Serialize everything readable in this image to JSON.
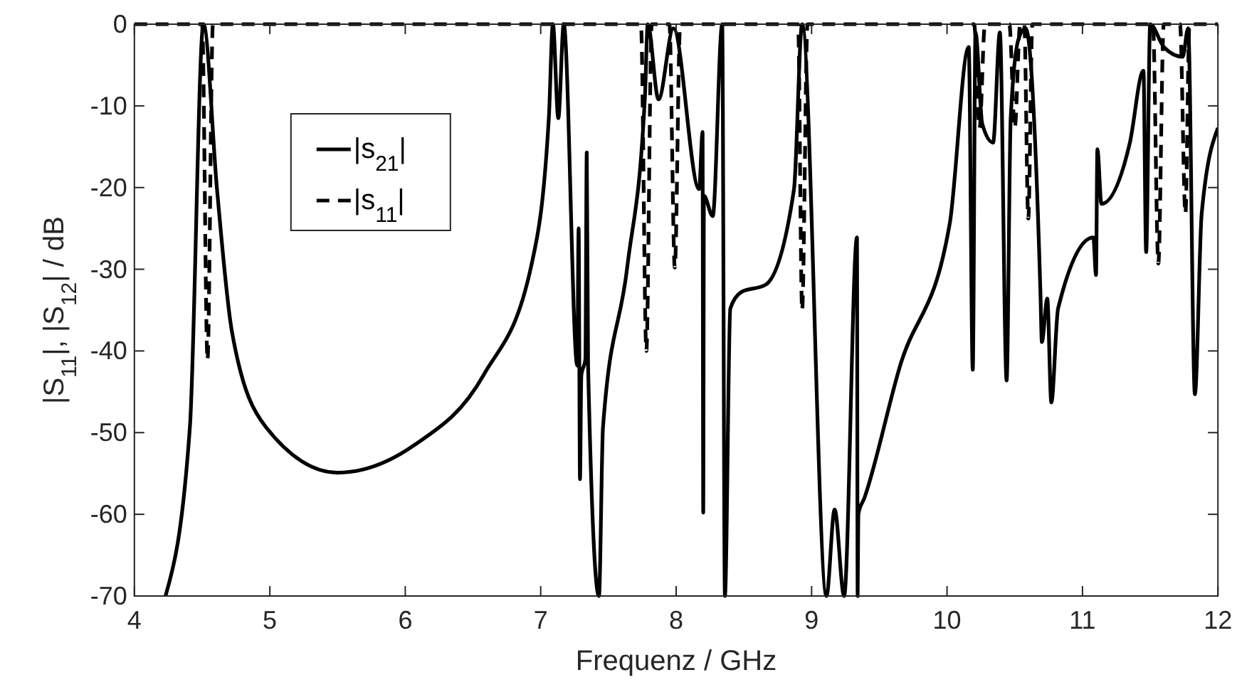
{
  "chart_data": {
    "type": "line",
    "xlabel": "Frequenz / GHz",
    "ylabel": "|S$_{11}$|, |S$_{12}$| / dB",
    "xlim": [
      4,
      12
    ],
    "xticks": [
      4,
      5,
      6,
      7,
      8,
      9,
      10,
      11,
      12
    ],
    "ylim": [
      -70,
      0
    ],
    "yticks": [
      -70,
      -60,
      -50,
      -40,
      -30,
      -20,
      -10,
      0
    ],
    "grid": false,
    "legend": "top left",
    "marker": "none",
    "series": [
      {
        "name": "|s$_{21}$|",
        "color": "#000000",
        "line_style": "solid",
        "x": [
          4.23,
          4.41,
          4.51,
          4.61,
          4.72,
          4.97,
          5.5,
          6.06,
          6.58,
          6.93,
          7.06,
          7.09,
          7.13,
          7.17,
          7.27,
          7.28,
          7.29,
          7.3,
          7.33,
          7.34,
          7.35,
          7.43,
          7.46,
          7.64,
          7.77,
          7.79,
          7.87,
          7.98,
          8.17,
          8.195,
          8.2,
          8.205,
          8.27,
          8.34,
          8.36,
          8.4,
          8.48,
          8.66,
          8.87,
          8.93,
          9.11,
          9.17,
          9.24,
          9.335,
          9.34,
          9.345,
          9.39,
          9.65,
          10.02,
          10.16,
          10.19,
          10.21,
          10.26,
          10.34,
          10.39,
          10.44,
          10.47,
          10.53,
          10.58,
          10.69,
          10.7,
          10.74,
          10.77,
          10.82,
          11.08,
          11.1,
          11.11,
          11.14,
          11.35,
          11.45,
          11.47,
          11.5,
          11.6,
          11.74,
          11.78,
          11.83,
          11.88,
          12
        ],
        "values": [
          -70,
          -49.3,
          0,
          -20.2,
          -37.6,
          -49.3,
          -54.9,
          -51.6,
          -42.9,
          -29.6,
          -11.5,
          0,
          -11.5,
          0,
          -41.8,
          -25,
          -55.7,
          -43,
          -41,
          -15.7,
          -42,
          -70,
          -49.3,
          -29.6,
          -8.7,
          0,
          -9.2,
          -0.5,
          -20.2,
          -13.2,
          -59.8,
          -21,
          -23.5,
          0,
          -70,
          -34.8,
          -32.8,
          -31.9,
          -20.2,
          0,
          -70,
          -59.4,
          -70,
          -26.1,
          -70,
          -60,
          -58,
          -42,
          -24.4,
          -2.8,
          -42.3,
          -1,
          -12.2,
          -14.5,
          -1,
          -43.6,
          -11.5,
          -1.7,
          -0.5,
          -33.1,
          -38.9,
          -33.6,
          -46.3,
          -34.8,
          -26.1,
          -30.7,
          -15.3,
          -22,
          -14.5,
          -5.7,
          -27.9,
          0,
          -2.8,
          -4,
          -0.5,
          -45.3,
          -23.2,
          -12.7
        ]
      },
      {
        "name": "|s$_{11}$|",
        "color": "#000000",
        "line_style": "dashed",
        "x": [
          4,
          4.5,
          4.54,
          4.58,
          7.74,
          7.78,
          7.82,
          7.95,
          7.99,
          8.03,
          8.9,
          8.93,
          8.97,
          10.2,
          10.24,
          10.28,
          10.46,
          10.5,
          10.54,
          10.57,
          10.6,
          10.63,
          11.52,
          11.56,
          11.6,
          11.72,
          11.76,
          11.79,
          12
        ],
        "values": [
          0,
          0,
          -41.1,
          0,
          0,
          -40,
          0,
          0,
          -29.8,
          0,
          0,
          -35,
          0,
          0,
          -12.7,
          0,
          0,
          -12.7,
          0,
          0,
          -23.8,
          0,
          0,
          -29.3,
          0,
          0,
          -23.2,
          0,
          0
        ]
      }
    ]
  }
}
